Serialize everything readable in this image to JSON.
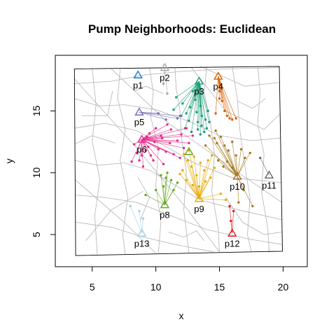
{
  "chart_data": {
    "type": "scatter",
    "title": "Pump Neighborhoods: Euclidean",
    "xlabel": "x",
    "ylabel": "y",
    "xlim": [
      2.1,
      21.9
    ],
    "ylim": [
      2.4,
      19.5
    ],
    "x_ticks": [
      5,
      10,
      15,
      20
    ],
    "y_ticks": [
      5,
      10,
      15
    ],
    "grid": false,
    "legend": "none",
    "map_border": [
      [
        3.6,
        18.4
      ],
      [
        19.7,
        18.6
      ],
      [
        19.95,
        3.65
      ],
      [
        3.7,
        3.3
      ]
    ],
    "streets": [
      [
        [
          3.6,
          17.2
        ],
        [
          6.5,
          17.4
        ],
        [
          9.0,
          17.9
        ],
        [
          12.0,
          18.2
        ],
        [
          15.5,
          18.4
        ],
        [
          19.7,
          18.5
        ]
      ],
      [
        [
          3.6,
          16.0
        ],
        [
          5.5,
          15.4
        ],
        [
          7.5,
          15.5
        ],
        [
          10.0,
          15.1
        ],
        [
          12.5,
          14.2
        ],
        [
          15.0,
          13.0
        ],
        [
          17.5,
          12.6
        ],
        [
          19.8,
          12.8
        ]
      ],
      [
        [
          3.6,
          13.6
        ],
        [
          6.0,
          14.0
        ],
        [
          8.5,
          13.4
        ],
        [
          11.0,
          12.0
        ],
        [
          13.0,
          10.8
        ],
        [
          16.0,
          9.6
        ],
        [
          19.9,
          9.2
        ]
      ],
      [
        [
          3.6,
          11.0
        ],
        [
          5.5,
          10.6
        ],
        [
          7.5,
          10.8
        ],
        [
          9.5,
          10.2
        ],
        [
          11.5,
          9.0
        ],
        [
          13.5,
          7.8
        ],
        [
          16.5,
          7.0
        ],
        [
          19.9,
          6.2
        ]
      ],
      [
        [
          3.7,
          8.2
        ],
        [
          6.0,
          8.0
        ],
        [
          8.5,
          7.6
        ],
        [
          11.0,
          6.6
        ],
        [
          14.0,
          5.4
        ],
        [
          17.5,
          4.6
        ],
        [
          19.9,
          4.2
        ]
      ],
      [
        [
          3.7,
          6.0
        ],
        [
          6.5,
          5.6
        ],
        [
          9.0,
          4.8
        ],
        [
          11.5,
          4.2
        ],
        [
          14.5,
          3.6
        ]
      ],
      [
        [
          5.0,
          18.4
        ],
        [
          5.3,
          15.5
        ],
        [
          5.0,
          12.5
        ],
        [
          5.6,
          9.5
        ],
        [
          5.2,
          6.5
        ],
        [
          5.4,
          3.4
        ]
      ],
      [
        [
          7.2,
          18.4
        ],
        [
          7.0,
          16.0
        ],
        [
          7.6,
          13.5
        ],
        [
          7.2,
          11.0
        ],
        [
          7.8,
          8.0
        ],
        [
          7.4,
          5.0
        ],
        [
          7.6,
          3.4
        ]
      ],
      [
        [
          9.5,
          18.5
        ],
        [
          9.8,
          16.5
        ],
        [
          9.6,
          14.5
        ],
        [
          10.2,
          12.0
        ],
        [
          10.0,
          9.0
        ],
        [
          10.4,
          6.0
        ],
        [
          10.2,
          3.5
        ]
      ],
      [
        [
          11.5,
          18.5
        ],
        [
          11.6,
          16.8
        ],
        [
          11.9,
          15.0
        ],
        [
          12.0,
          13.0
        ],
        [
          12.4,
          10.0
        ],
        [
          12.2,
          7.0
        ],
        [
          12.6,
          3.5
        ]
      ],
      [
        [
          14.0,
          18.6
        ],
        [
          13.8,
          16.5
        ],
        [
          14.3,
          14.0
        ],
        [
          14.6,
          11.5
        ],
        [
          14.4,
          8.5
        ],
        [
          14.9,
          5.5
        ],
        [
          15.0,
          3.6
        ]
      ],
      [
        [
          16.0,
          18.6
        ],
        [
          16.4,
          16.0
        ],
        [
          16.6,
          13.5
        ],
        [
          17.0,
          10.5
        ],
        [
          17.4,
          8.0
        ],
        [
          17.2,
          5.0
        ],
        [
          17.5,
          3.6
        ]
      ],
      [
        [
          18.0,
          18.6
        ],
        [
          18.2,
          16.5
        ],
        [
          18.0,
          14.0
        ],
        [
          18.5,
          11.5
        ],
        [
          18.3,
          8.5
        ],
        [
          18.8,
          5.5
        ],
        [
          18.9,
          3.6
        ]
      ],
      [
        [
          3.6,
          17.6
        ],
        [
          8.5,
          12.0
        ],
        [
          12.5,
          7.0
        ],
        [
          15.0,
          3.6
        ]
      ],
      [
        [
          6.5,
          18.4
        ],
        [
          11.0,
          14.0
        ],
        [
          16.5,
          10.0
        ],
        [
          19.9,
          7.6
        ]
      ],
      [
        [
          12.8,
          18.5
        ],
        [
          15.5,
          15.0
        ],
        [
          18.5,
          13.5
        ],
        [
          19.8,
          14.8
        ]
      ],
      [
        [
          3.7,
          9.4
        ],
        [
          7.5,
          6.0
        ],
        [
          10.0,
          3.5
        ]
      ],
      [
        [
          13.5,
          18.6
        ],
        [
          17.0,
          17.0
        ],
        [
          19.7,
          17.3
        ]
      ],
      [
        [
          4.5,
          4.5
        ],
        [
          6.5,
          7.0
        ],
        [
          9.0,
          8.5
        ]
      ],
      [
        [
          15.5,
          8.0
        ],
        [
          16.8,
          6.0
        ],
        [
          18.5,
          5.0
        ],
        [
          19.9,
          5.2
        ]
      ],
      [
        [
          3.6,
          12.3
        ],
        [
          5.0,
          13.0
        ],
        [
          6.8,
          12.4
        ]
      ],
      [
        [
          8.3,
          16.6
        ],
        [
          9.2,
          17.0
        ],
        [
          10.6,
          16.4
        ]
      ],
      [
        [
          11.0,
          5.2
        ],
        [
          12.2,
          4.8
        ],
        [
          13.2,
          5.3
        ],
        [
          13.8,
          4.5
        ]
      ],
      [
        [
          16.4,
          15.8
        ],
        [
          17.6,
          15.2
        ],
        [
          18.6,
          16.0
        ]
      ],
      [
        [
          4.2,
          14.6
        ],
        [
          6.2,
          14.6
        ],
        [
          6.6,
          16.6
        ]
      ],
      [
        [
          8.6,
          9.6
        ],
        [
          9.5,
          8.0
        ],
        [
          8.8,
          6.2
        ]
      ]
    ],
    "pumps": [
      {
        "id": "p1",
        "x": 8.6,
        "y": 17.9,
        "color": "#1F78D0"
      },
      {
        "id": "p2",
        "x": 10.7,
        "y": 18.5,
        "color": "#A6A6A6"
      },
      {
        "id": "p3",
        "x": 13.4,
        "y": 17.4,
        "color": "#1B9E77"
      },
      {
        "id": "p4",
        "x": 14.9,
        "y": 17.8,
        "color": "#D95F02"
      },
      {
        "id": "p5",
        "x": 8.7,
        "y": 14.9,
        "color": "#7570B3"
      },
      {
        "id": "p6",
        "x": 8.9,
        "y": 12.7,
        "color": "#E7298A"
      },
      {
        "id": "p7",
        "x": 12.6,
        "y": 11.7,
        "color": "#66A61E"
      },
      {
        "id": "p8",
        "x": 10.7,
        "y": 7.4,
        "color": "#66A61E"
      },
      {
        "id": "p9",
        "x": 13.4,
        "y": 7.9,
        "color": "#E6AB02"
      },
      {
        "id": "p10",
        "x": 16.4,
        "y": 9.7,
        "color": "#A6761D"
      },
      {
        "id": "p11",
        "x": 18.9,
        "y": 9.8,
        "color": "#666666"
      },
      {
        "id": "p12",
        "x": 16.0,
        "y": 5.1,
        "color": "#E31A1C"
      },
      {
        "id": "p13",
        "x": 8.9,
        "y": 5.1,
        "color": "#A6CEE3"
      }
    ],
    "pump_labels": [
      "p1",
      "p2",
      "p3",
      "p4",
      "p5",
      "p6",
      "p8",
      "p9",
      "p10",
      "p11",
      "p12",
      "p13"
    ],
    "cases": [
      {
        "pump": "p2",
        "points": [
          [
            10.9,
            16.4
          ],
          [
            10.6,
            17.2
          ]
        ]
      },
      {
        "pump": "p3",
        "points": [
          [
            12.1,
            15.6
          ],
          [
            12.4,
            14.8
          ],
          [
            12.6,
            14.2
          ],
          [
            12.3,
            13.6
          ],
          [
            12.8,
            13.3
          ],
          [
            13.1,
            15.9
          ],
          [
            13.2,
            14.9
          ],
          [
            13.3,
            14.1
          ],
          [
            13.3,
            13.5
          ],
          [
            13.5,
            15.4
          ],
          [
            13.6,
            14.6
          ],
          [
            13.6,
            13.8
          ],
          [
            13.8,
            13.3
          ],
          [
            13.9,
            14.3
          ],
          [
            14.0,
            13.6
          ],
          [
            14.1,
            15.0
          ],
          [
            14.2,
            14.1
          ],
          [
            12.9,
            16.6
          ],
          [
            11.6,
            16.1
          ],
          [
            12.0,
            14.6
          ],
          [
            11.4,
            15.1
          ],
          [
            13.5,
            13.1
          ],
          [
            12.7,
            15.3
          ]
        ]
      },
      {
        "pump": "p4",
        "points": [
          [
            15.0,
            16.6
          ],
          [
            15.2,
            15.8
          ],
          [
            15.4,
            15.0
          ],
          [
            15.6,
            14.6
          ],
          [
            15.8,
            14.4
          ],
          [
            16.0,
            14.3
          ],
          [
            16.3,
            14.4
          ],
          [
            15.0,
            16.0
          ],
          [
            14.7,
            14.8
          ]
        ]
      },
      {
        "pump": "p5",
        "points": [
          [
            10.8,
            14.3
          ],
          [
            11.7,
            14.4
          ],
          [
            11.9,
            14.6
          ],
          [
            10.2,
            14.8
          ]
        ]
      },
      {
        "pump": "p6",
        "points": [
          [
            8.3,
            12.3
          ],
          [
            8.5,
            11.6
          ],
          [
            8.7,
            11.0
          ],
          [
            9.0,
            10.5
          ],
          [
            9.2,
            11.8
          ],
          [
            9.4,
            12.1
          ],
          [
            9.6,
            11.4
          ],
          [
            9.9,
            12.5
          ],
          [
            10.2,
            11.9
          ],
          [
            10.5,
            12.8
          ],
          [
            10.8,
            11.7
          ],
          [
            11.1,
            12.4
          ],
          [
            11.4,
            11.5
          ],
          [
            11.7,
            12.6
          ],
          [
            12.0,
            13.1
          ],
          [
            12.2,
            12.0
          ],
          [
            10.0,
            13.6
          ],
          [
            10.4,
            13.0
          ],
          [
            9.8,
            11.0
          ],
          [
            11.2,
            13.5
          ],
          [
            12.6,
            12.4
          ],
          [
            12.9,
            13.0
          ],
          [
            9.5,
            13.2
          ],
          [
            8.1,
            10.9
          ],
          [
            10.6,
            10.7
          ],
          [
            11.9,
            11.2
          ],
          [
            8.9,
            11.4
          ],
          [
            12.4,
            13.6
          ],
          [
            10.9,
            13.9
          ],
          [
            9.3,
            12.9
          ]
        ]
      },
      {
        "pump": "p8",
        "points": [
          [
            10.4,
            9.8
          ],
          [
            10.8,
            9.6
          ],
          [
            11.2,
            9.4
          ],
          [
            11.7,
            9.2
          ],
          [
            10.6,
            8.9
          ],
          [
            10.0,
            8.6
          ],
          [
            9.2,
            8.2
          ],
          [
            11.4,
            8.6
          ],
          [
            10.9,
            10.0
          ]
        ]
      },
      {
        "pump": "p9",
        "points": [
          [
            12.2,
            11.5
          ],
          [
            12.5,
            11.0
          ],
          [
            12.8,
            10.5
          ],
          [
            13.0,
            11.3
          ],
          [
            13.2,
            9.8
          ],
          [
            13.5,
            10.8
          ],
          [
            13.8,
            10.2
          ],
          [
            14.1,
            11.0
          ],
          [
            14.3,
            9.6
          ],
          [
            14.6,
            10.4
          ],
          [
            12.4,
            9.4
          ],
          [
            12.9,
            9.0
          ],
          [
            13.4,
            8.9
          ],
          [
            13.9,
            9.3
          ],
          [
            12.1,
            10.2
          ],
          [
            11.9,
            9.9
          ],
          [
            14.4,
            11.4
          ],
          [
            15.1,
            8.3
          ],
          [
            15.5,
            7.8
          ],
          [
            12.6,
            11.8
          ]
        ]
      },
      {
        "pump": "p10",
        "points": [
          [
            14.2,
            13.0
          ],
          [
            14.6,
            12.8
          ],
          [
            14.8,
            12.4
          ],
          [
            15.1,
            12.9
          ],
          [
            15.4,
            12.2
          ],
          [
            15.7,
            11.8
          ],
          [
            16.0,
            12.5
          ],
          [
            16.3,
            11.4
          ],
          [
            16.7,
            11.9
          ],
          [
            17.0,
            11.2
          ],
          [
            17.4,
            11.6
          ],
          [
            14.9,
            11.0
          ],
          [
            15.3,
            10.5
          ],
          [
            15.6,
            10.9
          ],
          [
            16.0,
            10.4
          ],
          [
            14.7,
            13.4
          ],
          [
            16.9,
            8.6
          ],
          [
            17.6,
            7.3
          ],
          [
            16.5,
            7.6
          ],
          [
            13.9,
            12.2
          ]
        ]
      },
      {
        "pump": "p11",
        "points": [
          [
            18.2,
            11.2
          ]
        ]
      },
      {
        "pump": "p12",
        "points": [
          [
            15.8,
            7.3
          ],
          [
            15.9,
            6.1
          ],
          [
            16.1,
            6.9
          ]
        ]
      },
      {
        "pump": "p13",
        "points": [
          [
            8.0,
            7.3
          ],
          [
            9.0,
            6.3
          ],
          [
            8.7,
            6.9
          ]
        ]
      }
    ]
  }
}
